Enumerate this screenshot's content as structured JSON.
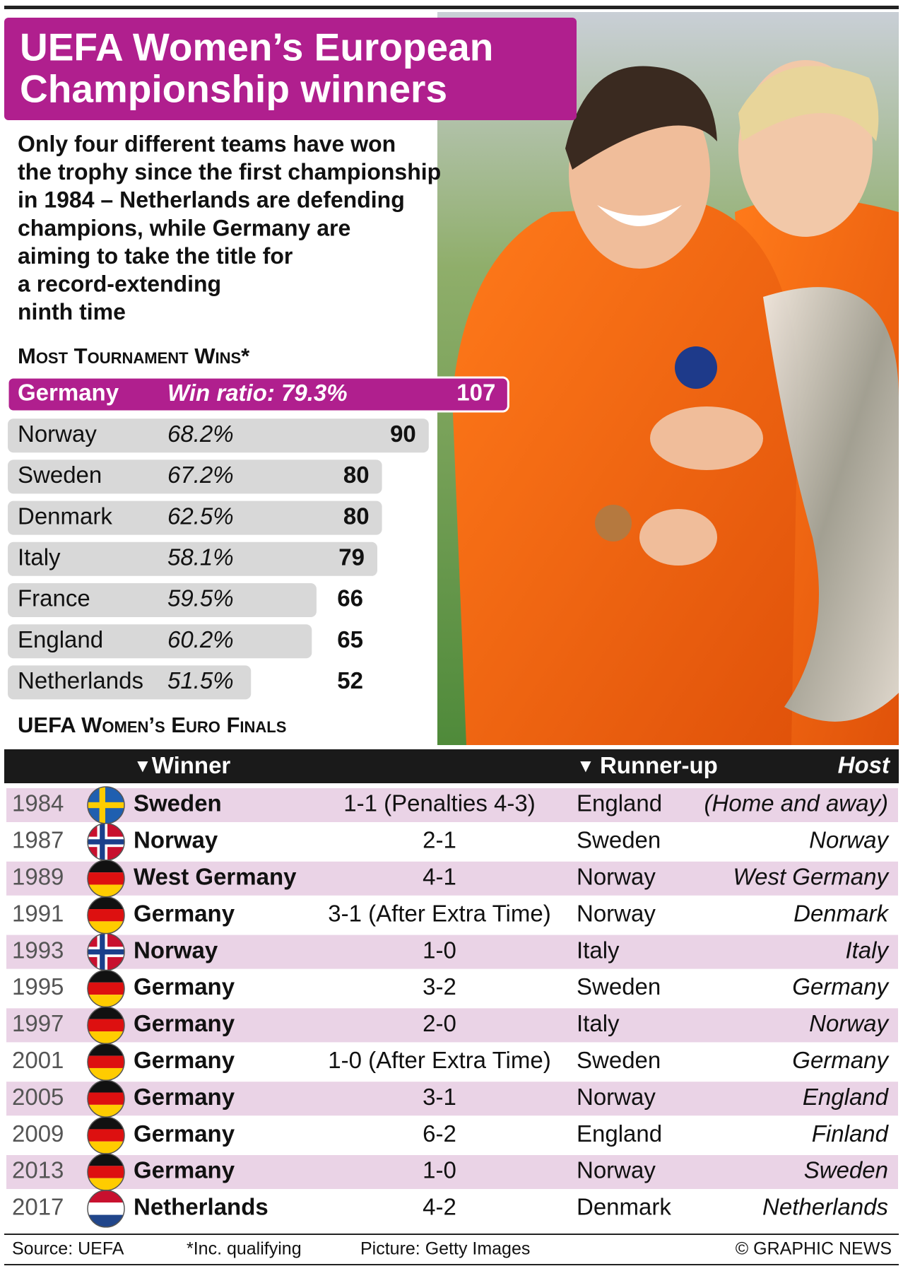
{
  "header": {
    "title_lines": [
      "UEFA Women’s European",
      "Championship winners"
    ],
    "intro_lines": [
      "Only four different teams have won",
      "the trophy since the first championship",
      "in 1984 – Netherlands are defending",
      "champions, while Germany are",
      "aiming to take the title for",
      "a record-extending",
      "ninth time"
    ]
  },
  "wins": {
    "title": "Most Tournament Wins*",
    "ratio_label": "Win ratio:",
    "rows": [
      {
        "team": "Germany",
        "ratio": "79.3%",
        "wins": 107
      },
      {
        "team": "Norway",
        "ratio": "68.2%",
        "wins": 90
      },
      {
        "team": "Sweden",
        "ratio": "67.2%",
        "wins": 80
      },
      {
        "team": "Denmark",
        "ratio": "62.5%",
        "wins": 80
      },
      {
        "team": "Italy",
        "ratio": "58.1%",
        "wins": 79
      },
      {
        "team": "France",
        "ratio": "59.5%",
        "wins": 66
      },
      {
        "team": "England",
        "ratio": "60.2%",
        "wins": 65
      },
      {
        "team": "Netherlands",
        "ratio": "51.5%",
        "wins": 52
      }
    ]
  },
  "finals": {
    "title": "UEFA Women’s Euro Finals",
    "columns": [
      "Winner",
      "Runner-up",
      "Host"
    ],
    "rows": [
      {
        "year": "1984",
        "winner": "Sweden",
        "score": "1-1 (Penalties 4-3)",
        "runner_up": "England",
        "host": "(Home and away)"
      },
      {
        "year": "1987",
        "winner": "Norway",
        "score": "2-1",
        "runner_up": "Sweden",
        "host": "Norway"
      },
      {
        "year": "1989",
        "winner": "West Germany",
        "score": "4-1",
        "runner_up": "Norway",
        "host": "West Germany"
      },
      {
        "year": "1991",
        "winner": "Germany",
        "score": "3-1 (After Extra Time)",
        "runner_up": "Norway",
        "host": "Denmark"
      },
      {
        "year": "1993",
        "winner": "Norway",
        "score": "1-0",
        "runner_up": "Italy",
        "host": "Italy"
      },
      {
        "year": "1995",
        "winner": "Germany",
        "score": "3-2",
        "runner_up": "Sweden",
        "host": "Germany"
      },
      {
        "year": "1997",
        "winner": "Germany",
        "score": "2-0",
        "runner_up": "Italy",
        "host": "Norway"
      },
      {
        "year": "2001",
        "winner": "Germany",
        "score": "1-0 (After Extra Time)",
        "runner_up": "Sweden",
        "host": "Germany"
      },
      {
        "year": "2005",
        "winner": "Germany",
        "score": "3-1",
        "runner_up": "Norway",
        "host": "England"
      },
      {
        "year": "2009",
        "winner": "Germany",
        "score": "6-2",
        "runner_up": "England",
        "host": "Finland"
      },
      {
        "year": "2013",
        "winner": "Germany",
        "score": "1-0",
        "runner_up": "Norway",
        "host": "Sweden"
      },
      {
        "year": "2017",
        "winner": "Netherlands",
        "score": "4-2",
        "runner_up": "Denmark",
        "host": "Netherlands"
      }
    ]
  },
  "footer": {
    "source": "Source: UEFA",
    "note": "*Inc. qualifying",
    "picture": "Picture: Getty Images",
    "credit": "© GRAPHIC NEWS"
  }
}
